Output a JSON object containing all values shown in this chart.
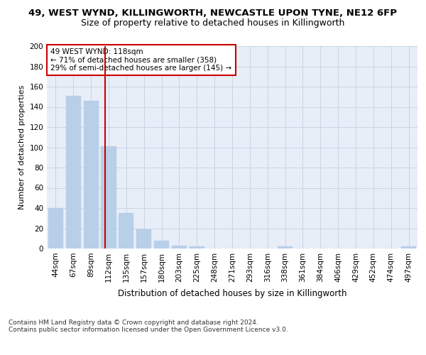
{
  "title1": "49, WEST WYND, KILLINGWORTH, NEWCASTLE UPON TYNE, NE12 6FP",
  "title2": "Size of property relative to detached houses in Killingworth",
  "xlabel": "Distribution of detached houses by size in Killingworth",
  "ylabel": "Number of detached properties",
  "categories": [
    "44sqm",
    "67sqm",
    "89sqm",
    "112sqm",
    "135sqm",
    "157sqm",
    "180sqm",
    "203sqm",
    "225sqm",
    "248sqm",
    "271sqm",
    "293sqm",
    "316sqm",
    "338sqm",
    "361sqm",
    "384sqm",
    "406sqm",
    "429sqm",
    "452sqm",
    "474sqm",
    "497sqm"
  ],
  "values": [
    40,
    151,
    146,
    101,
    35,
    19,
    8,
    3,
    2,
    0,
    0,
    0,
    0,
    2,
    0,
    0,
    0,
    0,
    0,
    0,
    2
  ],
  "bar_color": "#b8cfe8",
  "bar_edgecolor": "#b8cfe8",
  "vline_index": 3,
  "vline_color": "#cc0000",
  "annotation_text": "49 WEST WYND: 118sqm\n← 71% of detached houses are smaller (358)\n29% of semi-detached houses are larger (145) →",
  "annotation_box_edgecolor": "#cc0000",
  "annotation_box_facecolor": "#ffffff",
  "ylim": [
    0,
    200
  ],
  "yticks": [
    0,
    20,
    40,
    60,
    80,
    100,
    120,
    140,
    160,
    180,
    200
  ],
  "grid_color": "#c8d4e4",
  "bg_color": "#e8eef8",
  "footer": "Contains HM Land Registry data © Crown copyright and database right 2024.\nContains public sector information licensed under the Open Government Licence v3.0.",
  "title1_fontsize": 9.5,
  "title2_fontsize": 9,
  "xlabel_fontsize": 8.5,
  "ylabel_fontsize": 8,
  "tick_fontsize": 7.5,
  "annotation_fontsize": 7.5,
  "footer_fontsize": 6.5
}
